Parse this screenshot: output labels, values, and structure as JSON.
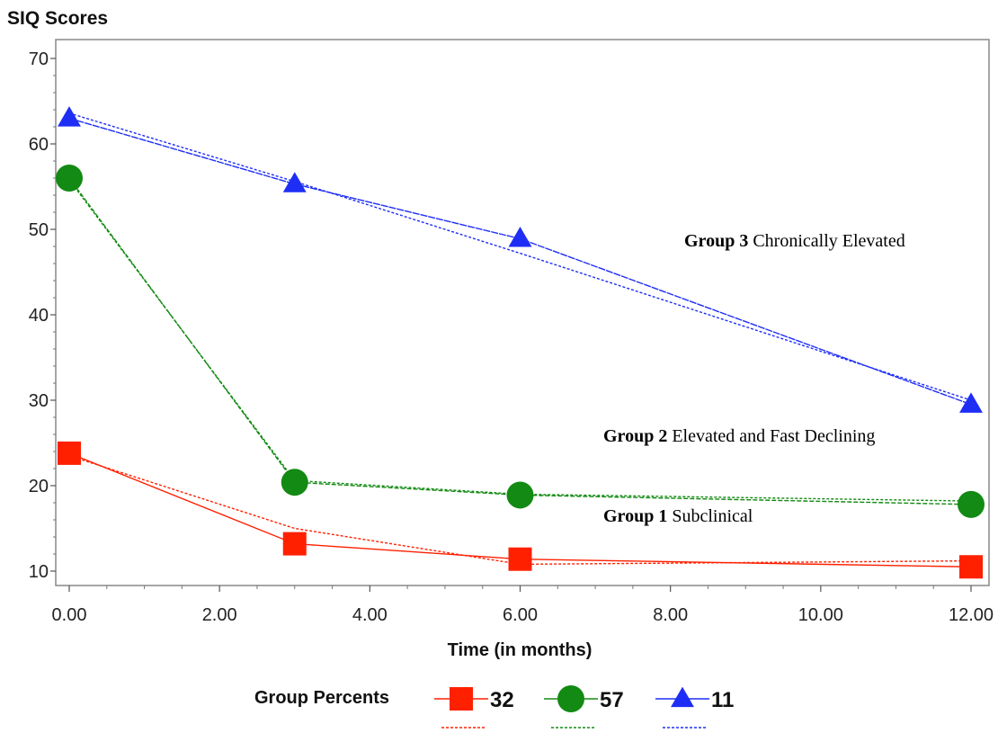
{
  "chart_data": {
    "type": "line",
    "ylabel": "SIQ Scores",
    "xlabel": "Time (in months)",
    "x": [
      0,
      3,
      6,
      12
    ],
    "xlim": [
      0,
      12
    ],
    "ylim": [
      10,
      70
    ],
    "x_ticks": [
      "0.00",
      "2.00",
      "4.00",
      "6.00",
      "8.00",
      "10.00",
      "12.00"
    ],
    "y_ticks": [
      "10",
      "20",
      "30",
      "40",
      "50",
      "60",
      "70"
    ],
    "grid": false,
    "series": [
      {
        "name": "32",
        "color": "#ff2000",
        "marker": "square",
        "observed": [
          23.8,
          13.2,
          11.4,
          10.5
        ],
        "predicted": [
          23.5,
          15.0,
          10.8,
          11.2
        ]
      },
      {
        "name": "57",
        "color": "#138a13",
        "marker": "circle",
        "observed": [
          56.0,
          20.4,
          18.9,
          17.8
        ],
        "predicted": [
          55.8,
          20.6,
          19.0,
          18.2
        ]
      },
      {
        "name": "11",
        "color": "#1e2ef5",
        "marker": "triangle",
        "observed": [
          63.0,
          55.3,
          48.9,
          29.5
        ],
        "predicted": [
          63.6,
          55.6,
          47.2,
          30.0
        ]
      }
    ],
    "legend": {
      "title": "Group Percents",
      "position": "bottom"
    },
    "annotations": [
      {
        "bold": "Group 3",
        "text": "Chronically Elevated"
      },
      {
        "bold": "Group 2",
        "text": "Elevated and Fast Declining"
      },
      {
        "bold": "Group 1",
        "text": "Subclinical"
      }
    ]
  }
}
